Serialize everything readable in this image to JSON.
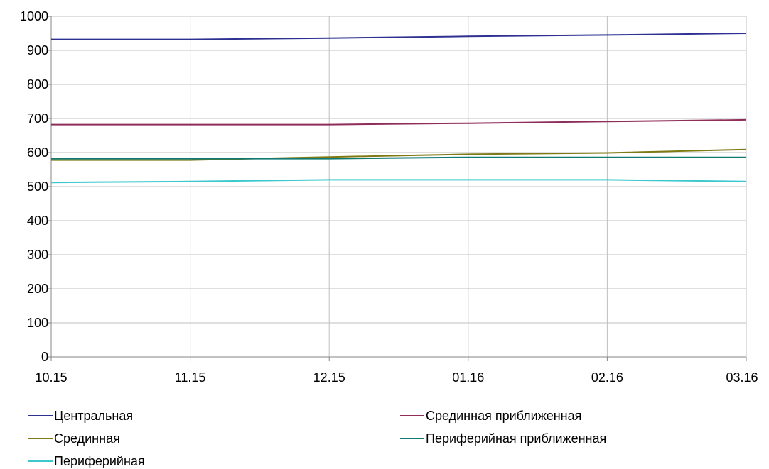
{
  "chart_data": {
    "type": "line",
    "title": "",
    "xlabel": "",
    "ylabel": "",
    "categories": [
      "10.15",
      "11.15",
      "12.15",
      "01.16",
      "02.16",
      "03.16"
    ],
    "ylim": [
      0,
      1000
    ],
    "yticks": [
      0,
      100,
      200,
      300,
      400,
      500,
      600,
      700,
      800,
      900,
      1000
    ],
    "grid": true,
    "legend_position": "bottom",
    "series": [
      {
        "name": "Центральная",
        "color": "#2E3192",
        "values": [
          932,
          932,
          936,
          941,
          945,
          950
        ]
      },
      {
        "name": "Срединная приближенная",
        "color": "#8E2C5A",
        "values": [
          682,
          682,
          682,
          686,
          691,
          696
        ]
      },
      {
        "name": "Срединная",
        "color": "#7F7A14",
        "values": [
          578,
          578,
          587,
          595,
          599,
          609
        ]
      },
      {
        "name": "Периферийная приближенная",
        "color": "#117A73",
        "values": [
          582,
          582,
          582,
          586,
          586,
          586
        ]
      },
      {
        "name": "Периферийная",
        "color": "#3CC8CC",
        "values": [
          512,
          515,
          520,
          520,
          520,
          515
        ]
      }
    ]
  }
}
